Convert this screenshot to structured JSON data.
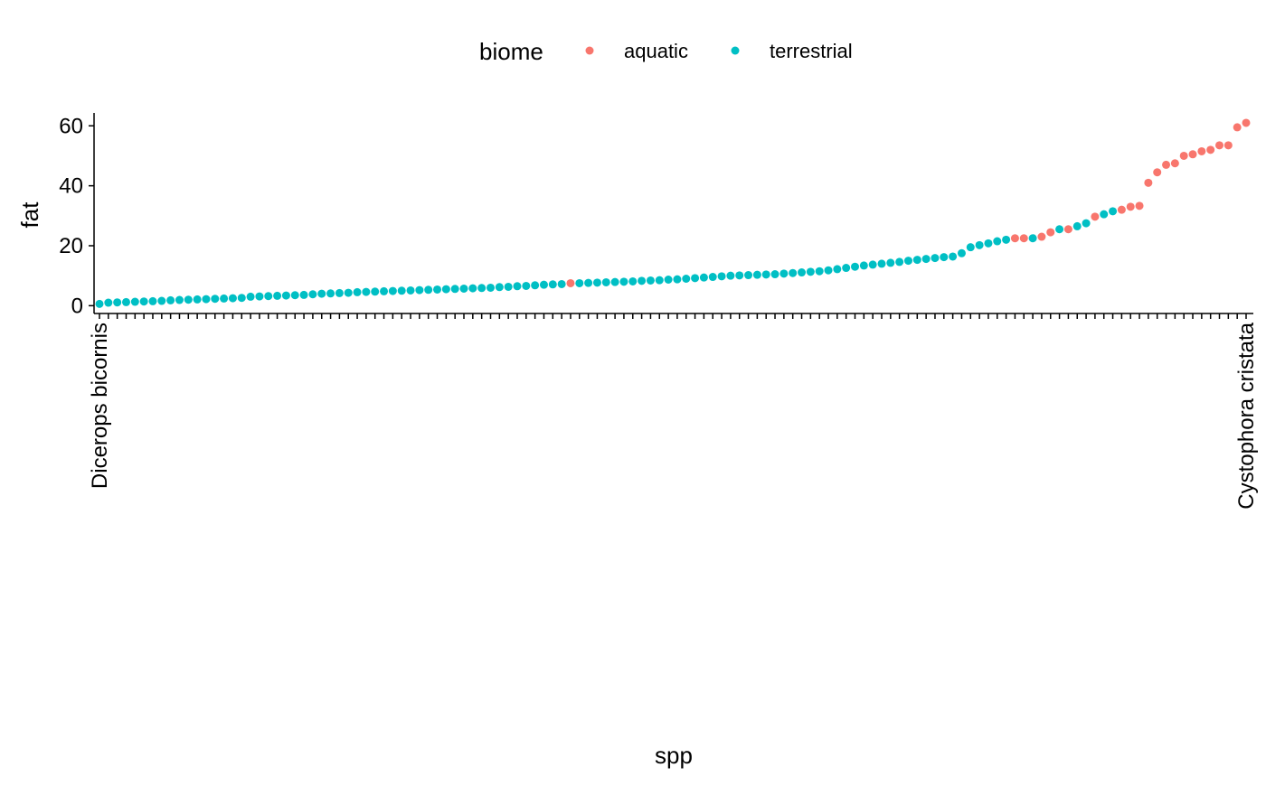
{
  "chart_data": {
    "type": "scatter",
    "x_label": "spp",
    "y_label": "fat",
    "legend_title": "biome",
    "categories": [
      "Dicerops bicornis",
      null,
      null,
      null,
      null,
      null,
      null,
      null,
      null,
      null,
      null,
      null,
      null,
      null,
      null,
      null,
      null,
      null,
      null,
      null,
      null,
      null,
      null,
      null,
      null,
      null,
      null,
      null,
      null,
      null,
      null,
      null,
      null,
      null,
      null,
      null,
      null,
      null,
      null,
      null,
      null,
      null,
      null,
      null,
      null,
      null,
      null,
      null,
      null,
      null,
      null,
      null,
      null,
      null,
      null,
      null,
      null,
      null,
      null,
      null,
      null,
      null,
      null,
      null,
      null,
      null,
      null,
      null,
      null,
      null,
      null,
      null,
      null,
      null,
      null,
      null,
      null,
      null,
      null,
      null,
      null,
      null,
      null,
      null,
      null,
      null,
      null,
      null,
      null,
      null,
      null,
      null,
      null,
      null,
      null,
      null,
      null,
      null,
      null,
      null,
      null,
      null,
      null,
      null,
      null,
      null,
      null,
      null,
      null,
      null,
      null,
      null,
      null,
      null,
      null,
      null,
      null,
      null,
      null,
      null,
      null,
      null,
      null,
      null,
      null,
      null,
      null,
      null,
      null,
      "Cystophora cristata"
    ],
    "series": [
      {
        "name": "aquatic",
        "color": "#F8766D",
        "values": [
          null,
          null,
          null,
          null,
          null,
          null,
          null,
          null,
          null,
          null,
          null,
          null,
          null,
          null,
          null,
          null,
          null,
          null,
          null,
          null,
          null,
          null,
          null,
          null,
          null,
          null,
          null,
          null,
          null,
          null,
          null,
          null,
          null,
          null,
          null,
          null,
          null,
          null,
          null,
          null,
          null,
          null,
          null,
          null,
          null,
          null,
          null,
          null,
          null,
          null,
          null,
          null,
          null,
          7.5,
          null,
          null,
          null,
          null,
          null,
          null,
          null,
          null,
          null,
          null,
          null,
          null,
          null,
          null,
          null,
          null,
          null,
          null,
          null,
          null,
          null,
          null,
          null,
          null,
          null,
          null,
          null,
          null,
          null,
          null,
          null,
          null,
          null,
          null,
          null,
          null,
          null,
          null,
          null,
          null,
          null,
          null,
          null,
          null,
          null,
          null,
          null,
          null,
          null,
          22.5,
          22.5,
          null,
          23,
          24.5,
          null,
          25.5,
          null,
          null,
          29.7,
          null,
          null,
          32,
          33,
          33.3,
          41,
          44.5,
          47,
          47.5,
          50,
          50.5,
          51.5,
          52,
          53.5,
          53.5,
          59.5,
          61
        ]
      },
      {
        "name": "terrestrial",
        "color": "#00BFC4",
        "values": [
          0.6,
          1.0,
          1.1,
          1.2,
          1.3,
          1.4,
          1.5,
          1.6,
          1.8,
          1.9,
          2.0,
          2.1,
          2.2,
          2.3,
          2.4,
          2.5,
          2.6,
          3.0,
          3.1,
          3.2,
          3.3,
          3.4,
          3.5,
          3.6,
          3.8,
          4.0,
          4.1,
          4.2,
          4.3,
          4.5,
          4.6,
          4.7,
          4.8,
          4.9,
          5.0,
          5.1,
          5.2,
          5.3,
          5.4,
          5.5,
          5.6,
          5.7,
          5.8,
          5.9,
          6.0,
          6.2,
          6.3,
          6.5,
          6.6,
          6.8,
          7.0,
          7.1,
          7.2,
          null,
          7.5,
          7.6,
          7.7,
          7.8,
          7.9,
          8.0,
          8.1,
          8.3,
          8.4,
          8.5,
          8.7,
          8.8,
          9.0,
          9.2,
          9.4,
          9.6,
          9.8,
          10.0,
          10.1,
          10.2,
          10.3,
          10.4,
          10.5,
          10.7,
          10.9,
          11.1,
          11.3,
          11.5,
          11.8,
          12.2,
          12.6,
          13.0,
          13.4,
          13.7,
          14.0,
          14.3,
          14.6,
          15.0,
          15.3,
          15.6,
          15.9,
          16.2,
          16.4,
          17.5,
          19.5,
          20.2,
          20.8,
          21.5,
          22.0,
          null,
          null,
          22.5,
          null,
          null,
          25.5,
          null,
          26.5,
          27.5,
          null,
          30.5,
          31.5,
          null,
          null,
          null,
          null,
          null,
          null,
          null,
          null,
          null,
          null,
          null,
          null,
          null,
          null,
          null
        ]
      }
    ],
    "ylim": [
      -2,
      64
    ],
    "yticks": [
      0,
      20,
      40,
      60
    ],
    "legend": "top"
  }
}
